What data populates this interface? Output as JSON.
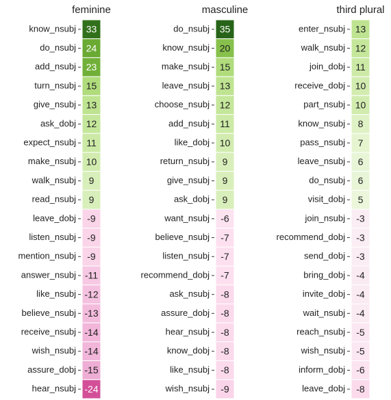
{
  "chart_data": [
    {
      "type": "heatmap",
      "title": "feminine",
      "categories": [
        "know_nsubj",
        "do_nsubj",
        "add_nsubj",
        "turn_nsubj",
        "give_nsubj",
        "ask_dobj",
        "expect_nsubj",
        "make_nsubj",
        "walk_nsubj",
        "read_nsubj",
        "leave_dobj",
        "listen_nsubj",
        "mention_nsubj",
        "answer_nsubj",
        "like_nsubj",
        "believe_nsubj",
        "receive_nsubj",
        "wish_nsubj",
        "assure_dobj",
        "hear_nsubj"
      ],
      "values": [
        33,
        24,
        23,
        15,
        13,
        12,
        11,
        10,
        9,
        9,
        -9,
        -9,
        -9,
        -11,
        -12,
        -13,
        -14,
        -14,
        -15,
        -24
      ],
      "colormap": [
        "#8e0152",
        "#c51b7d",
        "#de77ae",
        "#f1b6da",
        "#fde0ef",
        "#f7f7f7",
        "#e6f5d0",
        "#b8e186",
        "#7fbc41",
        "#4d9221",
        "#276419"
      ]
    },
    {
      "type": "heatmap",
      "title": "masculine",
      "categories": [
        "do_nsubj",
        "know_nsubj",
        "make_nsubj",
        "leave_nsubj",
        "choose_nsubj",
        "add_nsubj",
        "like_dobj",
        "return_nsubj",
        "give_nsubj",
        "ask_dobj",
        "want_nsubj",
        "believe_nsubj",
        "listen_nsubj",
        "recommend_dobj",
        "ask_nsubj",
        "assure_dobj",
        "hear_nsubj",
        "know_dobj",
        "like_nsubj",
        "wish_nsubj"
      ],
      "values": [
        35,
        20,
        15,
        13,
        12,
        11,
        10,
        9,
        9,
        9,
        -6,
        -7,
        -7,
        -7,
        -8,
        -8,
        -8,
        -8,
        -8,
        -9
      ],
      "colormap": [
        "#8e0152",
        "#c51b7d",
        "#de77ae",
        "#f1b6da",
        "#fde0ef",
        "#f7f7f7",
        "#e6f5d0",
        "#b8e186",
        "#7fbc41",
        "#4d9221",
        "#276419"
      ]
    },
    {
      "type": "heatmap",
      "title": "third plural",
      "categories": [
        "enter_nsubj",
        "walk_nsubj",
        "join_dobj",
        "receive_dobj",
        "part_nsubj",
        "know_nsubj",
        "pass_nsubj",
        "leave_nsubj",
        "do_nsubj",
        "visit_dobj",
        "join_nsubj",
        "recommend_dobj",
        "send_dobj",
        "bring_dobj",
        "invite_dobj",
        "wait_nsubj",
        "reach_nsubj",
        "wish_nsubj",
        "inform_dobj",
        "leave_dobj"
      ],
      "values": [
        13,
        12,
        11,
        10,
        10,
        8,
        7,
        6,
        6,
        5,
        -3,
        -3,
        -3,
        -4,
        -4,
        -4,
        -5,
        -5,
        -6,
        -8
      ],
      "colormap": [
        "#8e0152",
        "#c51b7d",
        "#de77ae",
        "#f1b6da",
        "#fde0ef",
        "#f7f7f7",
        "#e6f5d0",
        "#b8e186",
        "#7fbc41",
        "#4d9221",
        "#276419"
      ]
    }
  ]
}
